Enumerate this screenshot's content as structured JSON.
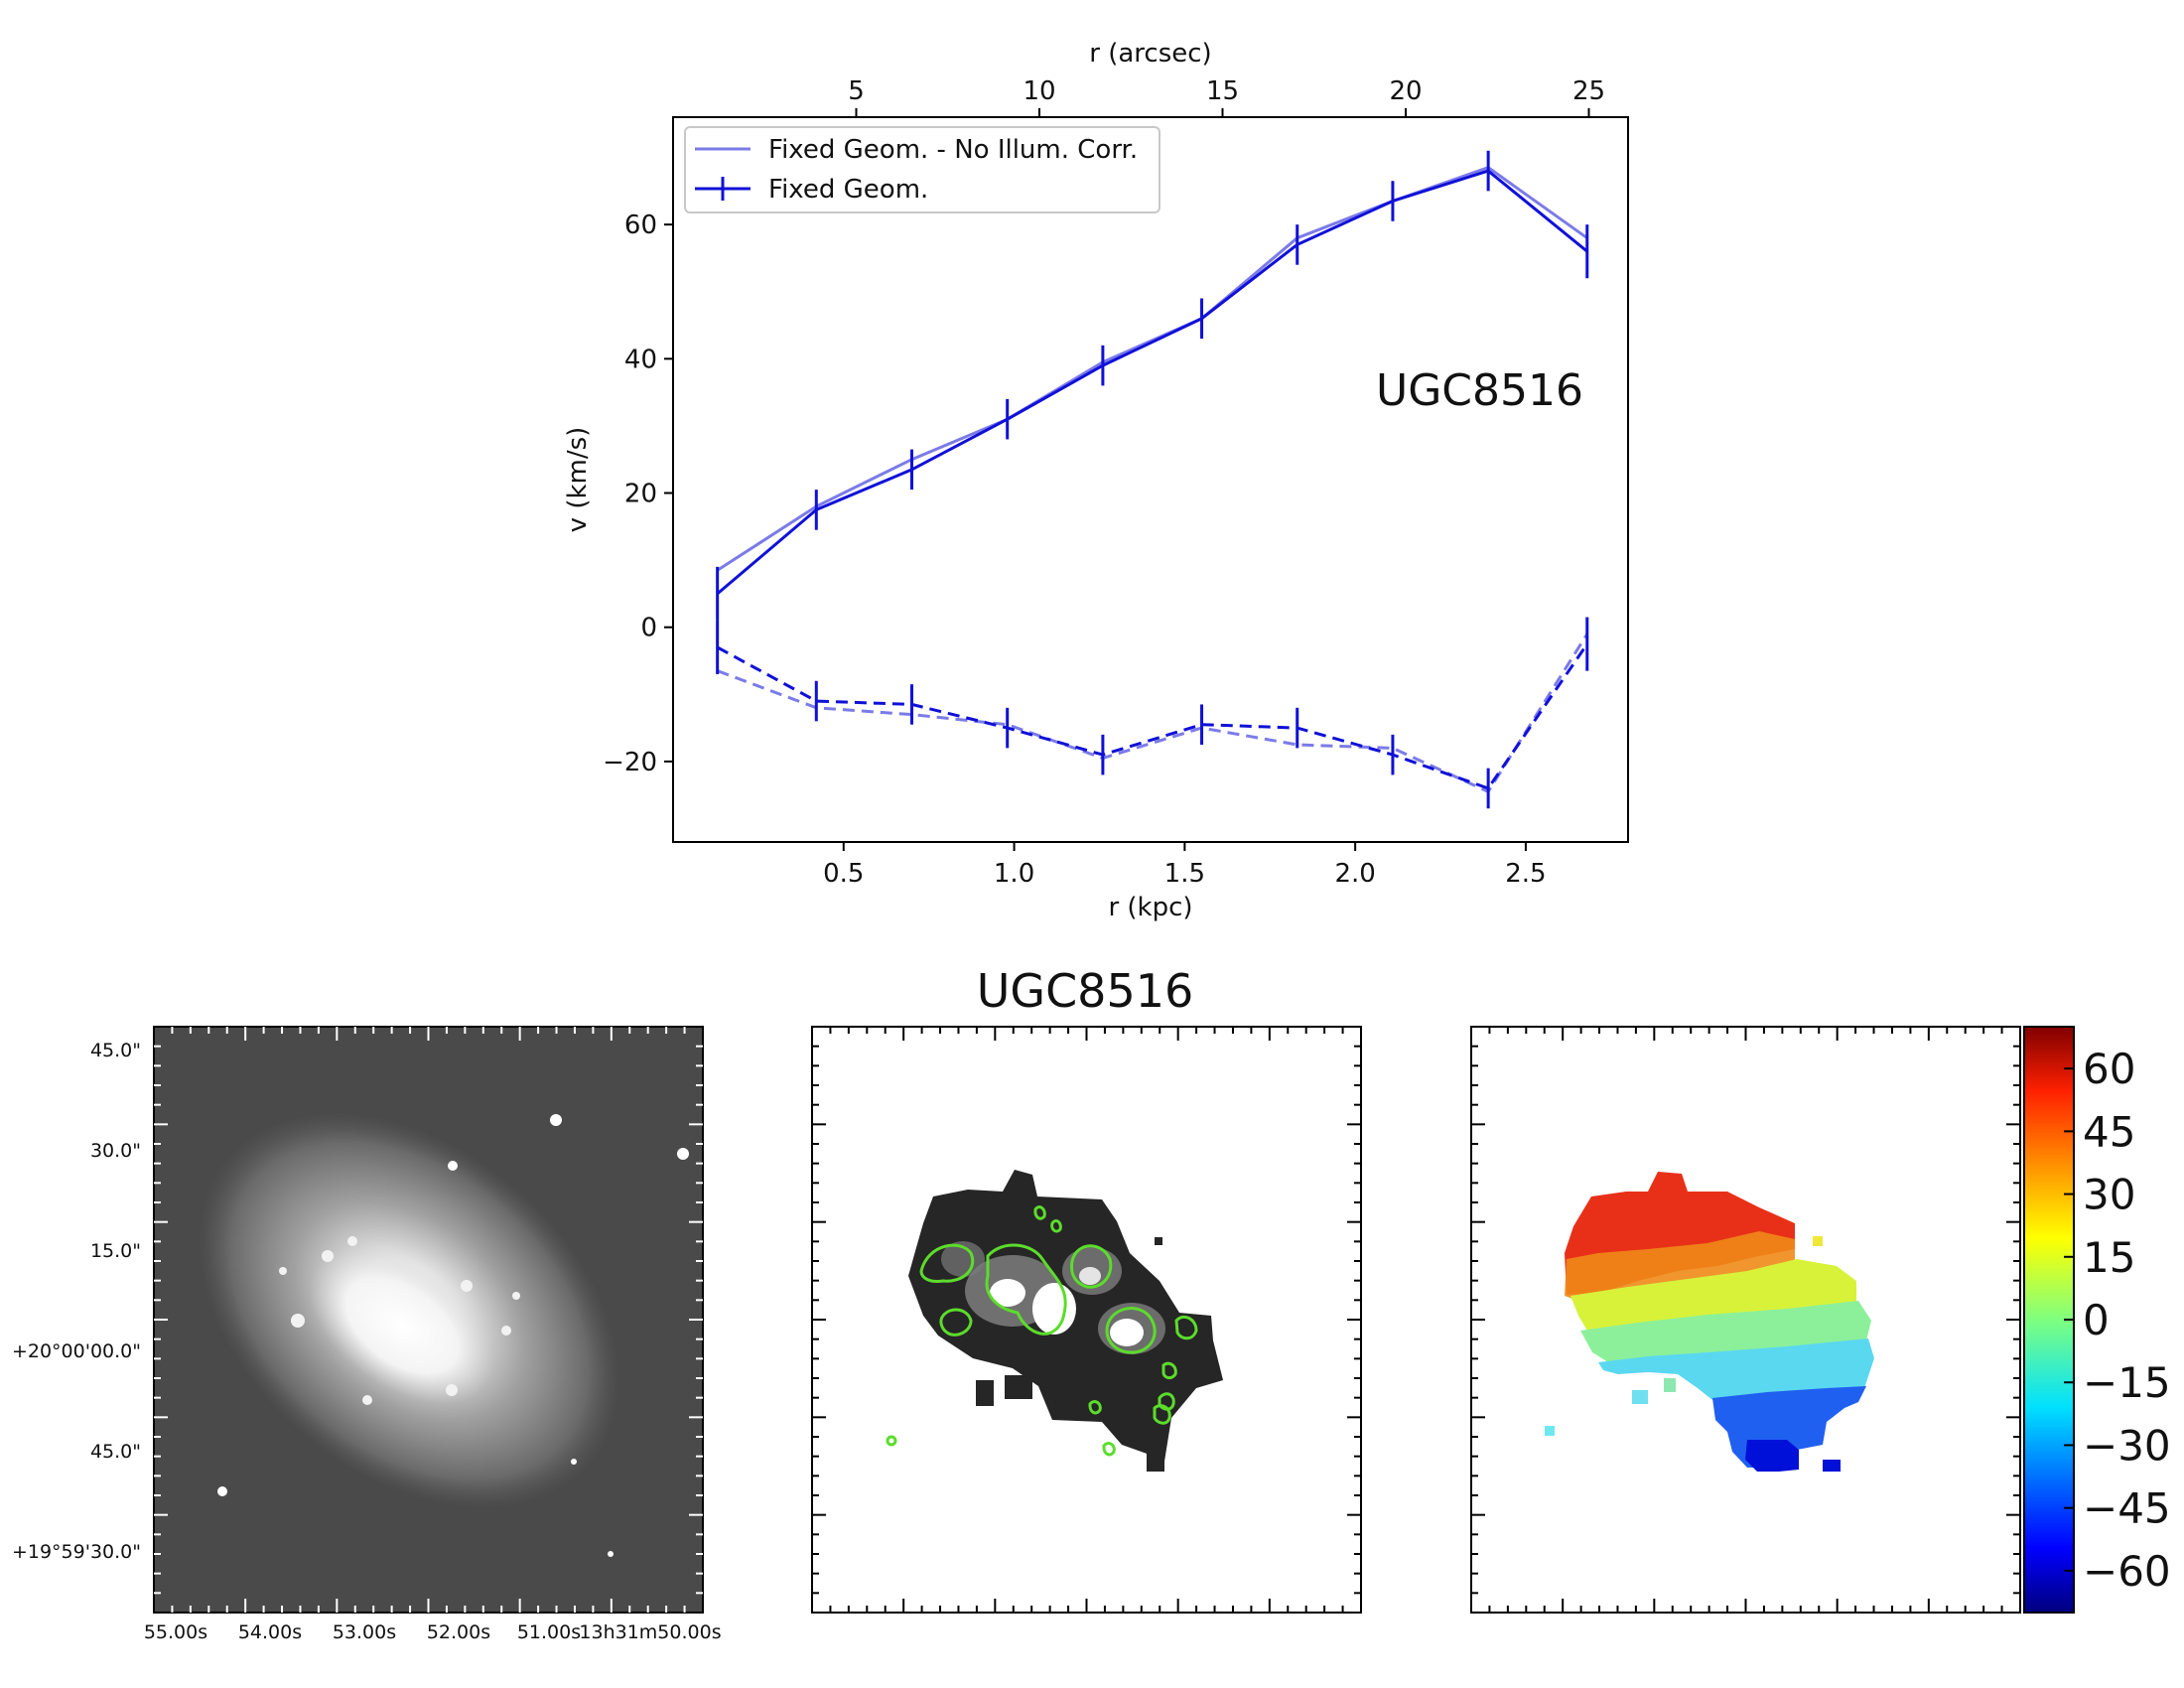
{
  "chart_data": [
    {
      "type": "line",
      "title": "",
      "annotation": "UGC8516",
      "xlabel": "r (kpc)",
      "ylabel": "v (km/s)",
      "top_xlabel": "r (arcsec)",
      "xlim": [
        0.0,
        2.8
      ],
      "ylim": [
        -32,
        76
      ],
      "x_ticks": [
        0.5,
        1.0,
        1.5,
        2.0,
        2.5
      ],
      "x_tick_labels": [
        "0.5",
        "1.0",
        "1.5",
        "2.0",
        "2.5"
      ],
      "y_ticks": [
        -20,
        0,
        20,
        40,
        60
      ],
      "y_tick_labels": [
        "−20",
        "0",
        "20",
        "40",
        "60"
      ],
      "top_x_ticks_kpc": [
        0.537,
        1.074,
        1.611,
        2.148,
        2.685
      ],
      "top_x_tick_labels": [
        "5",
        "10",
        "15",
        "20",
        "25"
      ],
      "grid": false,
      "legend_position": "top-left",
      "legend": [
        "Fixed Geom. - No Illum. Corr.",
        "Fixed Geom."
      ],
      "x": [
        0.13,
        0.42,
        0.7,
        0.98,
        1.26,
        1.55,
        1.83,
        2.11,
        2.39,
        2.68
      ],
      "series": [
        {
          "name": "Fixed Geom. - No Illum. Corr.",
          "side": "approaching",
          "color": "#7b7be8",
          "style": "solid",
          "values": [
            8.5,
            18,
            25,
            31,
            39.5,
            46,
            58,
            63.5,
            68.5,
            58
          ]
        },
        {
          "name": "Fixed Geom. - No Illum. Corr.",
          "side": "receding",
          "color": "#7b7be8",
          "style": "dashed",
          "values": [
            -6.5,
            -12,
            -13,
            -14.5,
            -19.5,
            -15,
            -17.5,
            -18,
            -24.5,
            -1
          ]
        },
        {
          "name": "Fixed Geom.",
          "side": "approaching",
          "color": "#1010d8",
          "style": "solid",
          "values": [
            5,
            17.5,
            23.5,
            31,
            39,
            46,
            57,
            63.5,
            68,
            56
          ],
          "errors": [
            4,
            3,
            3,
            3,
            3,
            3,
            3,
            3,
            3,
            4
          ]
        },
        {
          "name": "Fixed Geom.",
          "side": "receding",
          "color": "#1010d8",
          "style": "dashed",
          "values": [
            -3,
            -11,
            -11.5,
            -15,
            -19,
            -14.5,
            -15,
            -19,
            -24,
            -2.5
          ],
          "errors": [
            4,
            3,
            3,
            3,
            3,
            3,
            3,
            3,
            3,
            4
          ]
        }
      ]
    },
    {
      "type": "image",
      "panel": "optical image",
      "colormap": "grayscale",
      "y_tick_labels": [
        "45.0\"",
        "30.0\"",
        "15.0\"",
        "+20°00'00.0\"",
        "45.0\"",
        "+19°59'30.0\""
      ],
      "x_tick_labels": [
        "55.00s",
        "54.00s",
        "53.00s",
        "52.00s",
        "51.00s",
        "13h31m50.00s"
      ]
    },
    {
      "type": "heatmap",
      "panel": "H-alpha intensity map with contours",
      "title": "UGC8516",
      "colormap": "grayscale",
      "contour_color": "#5cdc2c"
    },
    {
      "type": "heatmap",
      "panel": "velocity field",
      "colormap": "jet",
      "colorbar_range": [
        -70,
        70
      ],
      "colorbar_ticks": [
        60,
        45,
        30,
        15,
        0,
        -15,
        -30,
        -45,
        -60
      ],
      "colorbar_tick_labels": [
        "60",
        "45",
        "30",
        "15",
        "0",
        "−15",
        "−30",
        "−45",
        "−60"
      ],
      "trend": "positive (red) at top, negative (blue) at bottom-right"
    }
  ]
}
